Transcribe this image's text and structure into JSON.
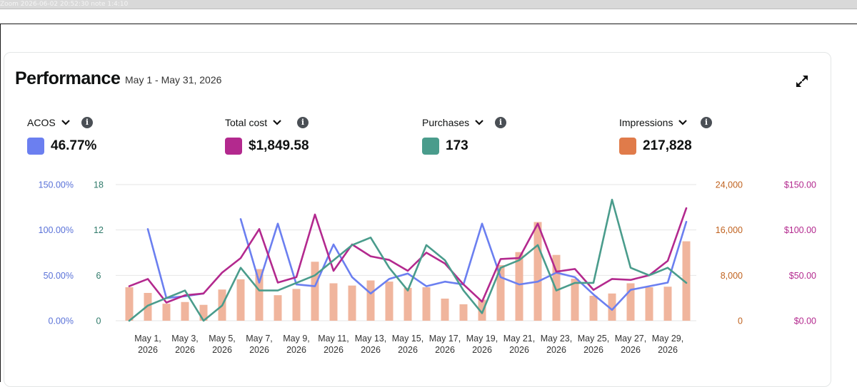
{
  "screen": {
    "top_strip_text": "Zoom 2026-06-02 20:52:30 note 1:4:10"
  },
  "card": {
    "title": "Performance",
    "date_range": "May 1 - May 31, 2026"
  },
  "metrics": [
    {
      "label": "ACOS",
      "value": "46.77%",
      "color": "#6b7ff0"
    },
    {
      "label": "Total cost",
      "value": "$1,849.58",
      "color": "#b3298e"
    },
    {
      "label": "Purchases",
      "value": "173",
      "color": "#4a9c8c"
    },
    {
      "label": "Impressions",
      "value": "217,828",
      "color": "#e07b4a"
    }
  ],
  "icons": {
    "expand": "expand-icon",
    "info": "info-icon",
    "chevron": "chevron-down-icon"
  },
  "chart_data": {
    "type": "bar+line",
    "grid": "horizontal",
    "categories": [
      "May 1, 2026",
      "May 2, 2026",
      "May 3, 2026",
      "May 4, 2026",
      "May 5, 2026",
      "May 6, 2026",
      "May 7, 2026",
      "May 8, 2026",
      "May 9, 2026",
      "May 10, 2026",
      "May 11, 2026",
      "May 12, 2026",
      "May 13, 2026",
      "May 14, 2026",
      "May 15, 2026",
      "May 16, 2026",
      "May 17, 2026",
      "May 18, 2026",
      "May 19, 2026",
      "May 20, 2026",
      "May 21, 2026",
      "May 22, 2026",
      "May 23, 2026",
      "May 24, 2026",
      "May 25, 2026",
      "May 26, 2026",
      "May 27, 2026",
      "May 28, 2026",
      "May 29, 2026",
      "May 30, 2026",
      "May 31, 2026"
    ],
    "x_tick_labels": [
      [
        "May 1,",
        "2026"
      ],
      [
        "May 3,",
        "2026"
      ],
      [
        "May 5,",
        "2026"
      ],
      [
        "May 7,",
        "2026"
      ],
      [
        "May 9,",
        "2026"
      ],
      [
        "May 11,",
        "2026"
      ],
      [
        "May 13,",
        "2026"
      ],
      [
        "May 15,",
        "2026"
      ],
      [
        "May 17,",
        "2026"
      ],
      [
        "May 19,",
        "2026"
      ],
      [
        "May 21,",
        "2026"
      ],
      [
        "May 23,",
        "2026"
      ],
      [
        "May 25,",
        "2026"
      ],
      [
        "May 27,",
        "2026"
      ],
      [
        "May 29,",
        "2026"
      ]
    ],
    "axes": {
      "acos": {
        "ticks": [
          "150.00%",
          "100.00%",
          "50.00%",
          "0.00%"
        ],
        "min": 0,
        "max": 150,
        "color": "#5a72d8"
      },
      "purchases": {
        "ticks": [
          "18",
          "12",
          "6",
          "0"
        ],
        "min": 0,
        "max": 18,
        "color": "#2f7a6a"
      },
      "impressions": {
        "ticks": [
          "24,000",
          "16,000",
          "8,000",
          "0"
        ],
        "min": 0,
        "max": 24000,
        "color": "#c0621f"
      },
      "total_cost": {
        "ticks": [
          "$150.00",
          "$100.00",
          "$50.00",
          "$0.00"
        ],
        "min": 0,
        "max": 150,
        "color": "#b3298e"
      }
    },
    "series": [
      {
        "name": "Impressions",
        "kind": "bar",
        "axis": "impressions",
        "color": "#f0b59d",
        "values": [
          5900,
          4900,
          3000,
          3300,
          2800,
          5500,
          7300,
          9100,
          4500,
          5600,
          10400,
          6600,
          6200,
          7100,
          6900,
          5800,
          5900,
          3900,
          2900,
          3700,
          9800,
          12100,
          17400,
          11600,
          7400,
          4400,
          4800,
          6600,
          5900,
          6000,
          14000
        ]
      },
      {
        "name": "ACOS",
        "kind": "line",
        "axis": "acos",
        "color": "#6b7ff0",
        "values": [
          null,
          101,
          25,
          27,
          30,
          null,
          112,
          42,
          107,
          40,
          38,
          84,
          48,
          30,
          46,
          52,
          38,
          43,
          40,
          107,
          48,
          40,
          43,
          53,
          48,
          29,
          12,
          34,
          38,
          42,
          109
        ]
      },
      {
        "name": "Total cost",
        "kind": "line",
        "axis": "total_cost",
        "color": "#b3298e",
        "values": [
          38,
          46,
          20,
          28,
          30,
          53,
          69,
          101,
          42,
          48,
          117,
          55,
          84,
          71,
          67,
          55,
          75,
          63,
          40,
          21,
          68,
          69,
          107,
          54,
          57,
          34,
          46,
          45,
          50,
          66,
          124
        ]
      },
      {
        "name": "Purchases",
        "kind": "line",
        "axis": "purchases",
        "color": "#4a9c8c",
        "values": [
          0,
          2,
          3,
          4,
          0,
          2,
          7,
          4,
          4,
          5,
          6,
          8,
          10,
          11,
          7,
          4,
          10,
          8,
          4,
          1,
          7,
          8,
          10,
          4,
          5,
          5,
          16,
          7,
          6,
          7,
          5
        ]
      }
    ]
  }
}
